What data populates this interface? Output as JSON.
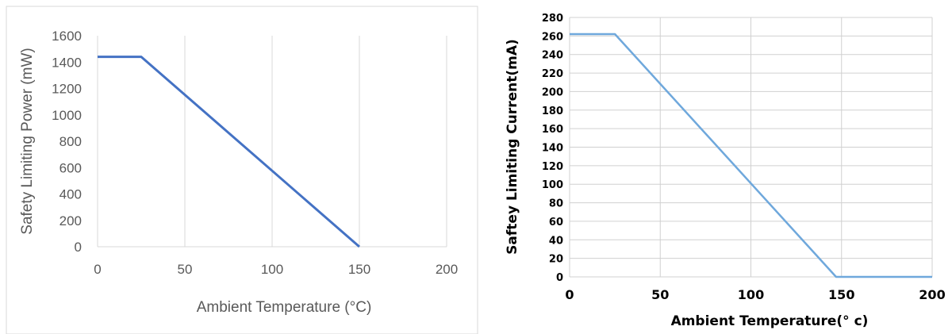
{
  "chart_data": [
    {
      "type": "line",
      "title": "",
      "xlabel": "Ambient Temperature (°C)",
      "ylabel": "Safety Limiting Power (mW)",
      "xlim": [
        0,
        200
      ],
      "ylim": [
        0,
        1600
      ],
      "x_ticks": [
        "0",
        "50",
        "100",
        "150",
        "200"
      ],
      "y_ticks": [
        "0",
        "200",
        "400",
        "600",
        "800",
        "1000",
        "1200",
        "1400",
        "1600"
      ],
      "grid": "vertical",
      "legend": "none",
      "series": [
        {
          "x": [
            0,
            25,
            150
          ],
          "y": [
            1440,
            1440,
            0
          ],
          "color": "#4472C4"
        }
      ]
    },
    {
      "type": "line",
      "title": "",
      "xlabel": "Ambient Temperature(° c)",
      "ylabel": "Saftey Limiting Current(mA)",
      "xlim": [
        0,
        200
      ],
      "ylim": [
        0,
        280
      ],
      "x_ticks": [
        "0",
        "50",
        "100",
        "150",
        "200"
      ],
      "y_ticks": [
        "0",
        "20",
        "40",
        "60",
        "80",
        "100",
        "120",
        "140",
        "160",
        "180",
        "200",
        "220",
        "240",
        "260",
        "280"
      ],
      "grid": "both",
      "legend": "none",
      "series": [
        {
          "x": [
            0,
            25,
            147,
            200
          ],
          "y": [
            262,
            262,
            0,
            0
          ],
          "color": "#6FA8DC"
        }
      ]
    }
  ]
}
